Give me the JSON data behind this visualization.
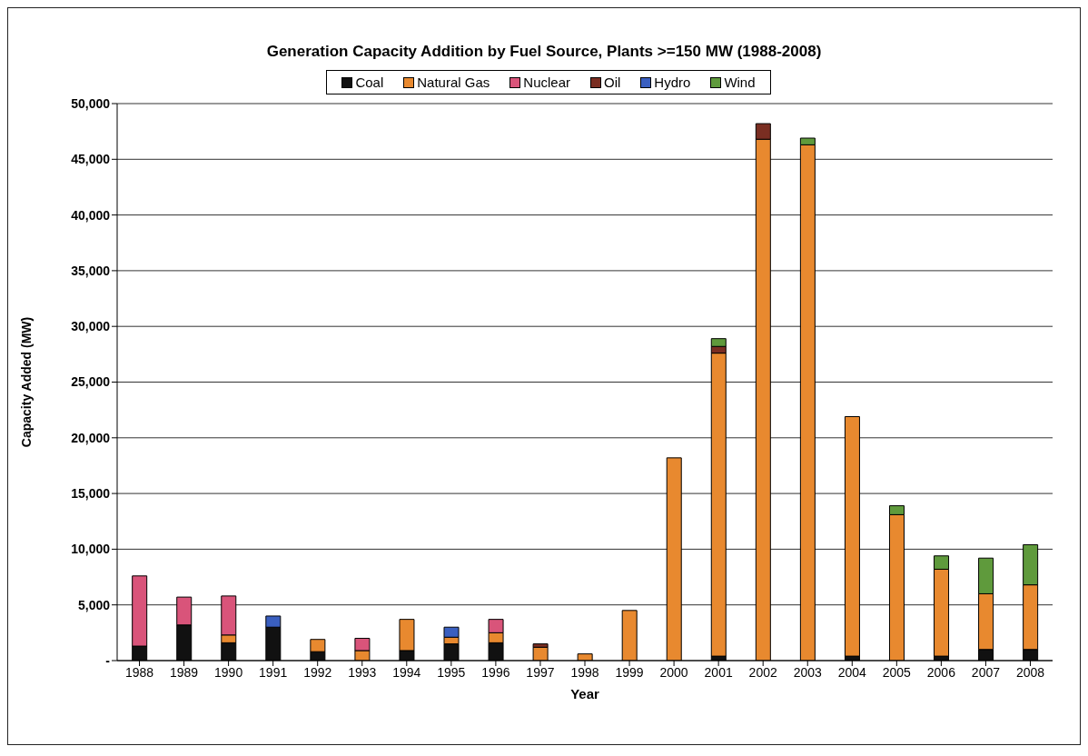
{
  "chart_data": {
    "type": "bar",
    "title": "Generation Capacity Addition by Fuel Source, Plants >=150 MW (1988-2008)",
    "xlabel": "Year",
    "ylabel": "Capacity Added (MW)",
    "categories": [
      "1988",
      "1989",
      "1990",
      "1991",
      "1992",
      "1993",
      "1994",
      "1995",
      "1996",
      "1997",
      "1998",
      "1999",
      "2000",
      "2001",
      "2002",
      "2003",
      "2004",
      "2005",
      "2006",
      "2007",
      "2008"
    ],
    "stacked": true,
    "grid": "y",
    "legend": "top",
    "ylim": [
      0,
      50000
    ],
    "yticks": [
      {
        "value": 0,
        "label": "-"
      },
      {
        "value": 5000,
        "label": "5,000"
      },
      {
        "value": 10000,
        "label": "10,000"
      },
      {
        "value": 15000,
        "label": "15,000"
      },
      {
        "value": 20000,
        "label": "20,000"
      },
      {
        "value": 25000,
        "label": "25,000"
      },
      {
        "value": 30000,
        "label": "30,000"
      },
      {
        "value": 35000,
        "label": "35,000"
      },
      {
        "value": 40000,
        "label": "40,000"
      },
      {
        "value": 45000,
        "label": "45,000"
      },
      {
        "value": 50000,
        "label": "50,000"
      }
    ],
    "series": [
      {
        "name": "Coal",
        "color": "#111111",
        "values": [
          1300,
          3200,
          1600,
          3000,
          800,
          0,
          900,
          1500,
          1600,
          0,
          0,
          0,
          0,
          400,
          0,
          0,
          400,
          0,
          400,
          1000,
          1000
        ]
      },
      {
        "name": "Natural Gas",
        "color": "#e8892f",
        "values": [
          0,
          0,
          700,
          0,
          1100,
          900,
          2800,
          600,
          900,
          1200,
          600,
          4500,
          18200,
          27200,
          46800,
          46300,
          21500,
          13100,
          7800,
          5000,
          5800
        ]
      },
      {
        "name": "Nuclear",
        "color": "#d9547a",
        "values": [
          6300,
          2500,
          3500,
          0,
          0,
          1100,
          0,
          0,
          1200,
          0,
          0,
          0,
          0,
          0,
          0,
          0,
          0,
          0,
          0,
          0,
          0
        ]
      },
      {
        "name": "Oil",
        "color": "#7a2e22",
        "values": [
          0,
          0,
          0,
          0,
          0,
          0,
          0,
          0,
          0,
          300,
          0,
          0,
          0,
          600,
          1400,
          0,
          0,
          0,
          0,
          0,
          0
        ]
      },
      {
        "name": "Hydro",
        "color": "#3a5fc0",
        "values": [
          0,
          0,
          0,
          1000,
          0,
          0,
          0,
          900,
          0,
          0,
          0,
          0,
          0,
          0,
          0,
          0,
          0,
          0,
          0,
          0,
          0
        ]
      },
      {
        "name": "Wind",
        "color": "#5f9a3c",
        "values": [
          0,
          0,
          0,
          0,
          0,
          0,
          0,
          0,
          0,
          0,
          0,
          0,
          0,
          700,
          0,
          600,
          0,
          800,
          1200,
          3200,
          3600
        ]
      }
    ]
  }
}
